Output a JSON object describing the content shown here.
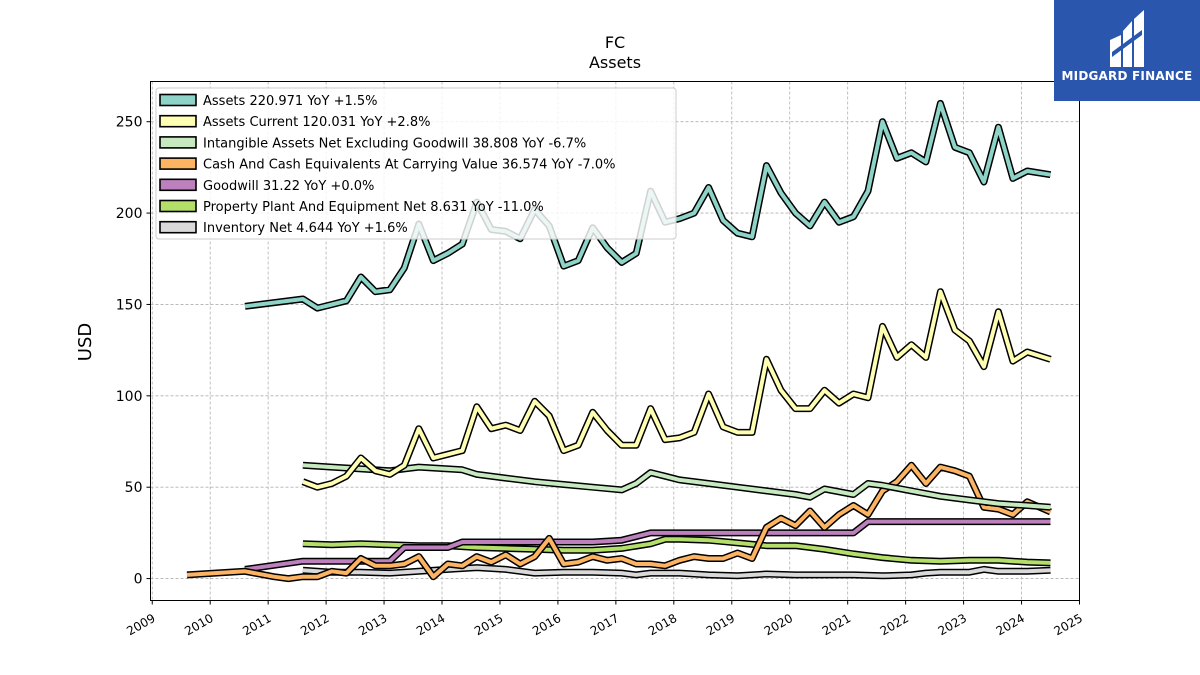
{
  "brand": {
    "name": "MIDGARD FINANCE",
    "color": "#2a57ad"
  },
  "chart_data": {
    "type": "line",
    "title": "FC",
    "subtitle": "Assets",
    "ylabel": "USD",
    "xlabel": "",
    "xlim": [
      2008.97,
      2025.0
    ],
    "ylim": [
      -12,
      272
    ],
    "x_ticks": [
      2009,
      2010,
      2011,
      2012,
      2013,
      2014,
      2015,
      2016,
      2017,
      2018,
      2019,
      2020,
      2021,
      2022,
      2023,
      2024,
      2025
    ],
    "y_ticks": [
      0,
      50,
      100,
      150,
      200,
      250
    ],
    "grid": true,
    "legend_position": "top-left",
    "series": [
      {
        "name": "Assets",
        "legend": "Assets  220.971 YoY +1.5%",
        "color": "#8dd3c7",
        "points": [
          [
            2010.6,
            149
          ],
          [
            2011.6,
            153
          ],
          [
            2011.85,
            148
          ],
          [
            2012.1,
            150
          ],
          [
            2012.35,
            152
          ],
          [
            2012.6,
            165
          ],
          [
            2012.85,
            157
          ],
          [
            2013.1,
            158
          ],
          [
            2013.35,
            170
          ],
          [
            2013.6,
            194
          ],
          [
            2013.85,
            174
          ],
          [
            2014.1,
            178
          ],
          [
            2014.35,
            183
          ],
          [
            2014.6,
            206
          ],
          [
            2014.85,
            191
          ],
          [
            2015.1,
            190
          ],
          [
            2015.35,
            186
          ],
          [
            2015.6,
            202
          ],
          [
            2015.85,
            193
          ],
          [
            2016.1,
            171
          ],
          [
            2016.35,
            174
          ],
          [
            2016.6,
            192
          ],
          [
            2016.85,
            181
          ],
          [
            2017.1,
            173
          ],
          [
            2017.35,
            178
          ],
          [
            2017.6,
            212
          ],
          [
            2017.85,
            195
          ],
          [
            2018.1,
            197
          ],
          [
            2018.35,
            200
          ],
          [
            2018.6,
            214
          ],
          [
            2018.85,
            196
          ],
          [
            2019.1,
            189
          ],
          [
            2019.35,
            187
          ],
          [
            2019.6,
            226
          ],
          [
            2019.85,
            211
          ],
          [
            2020.1,
            200
          ],
          [
            2020.35,
            193
          ],
          [
            2020.6,
            206
          ],
          [
            2020.85,
            195
          ],
          [
            2021.1,
            198
          ],
          [
            2021.35,
            212
          ],
          [
            2021.6,
            250
          ],
          [
            2021.85,
            230
          ],
          [
            2022.1,
            233
          ],
          [
            2022.35,
            228
          ],
          [
            2022.6,
            260
          ],
          [
            2022.85,
            236
          ],
          [
            2023.1,
            233
          ],
          [
            2023.35,
            217
          ],
          [
            2023.6,
            247
          ],
          [
            2023.85,
            219
          ],
          [
            2024.1,
            223
          ],
          [
            2024.5,
            221
          ]
        ]
      },
      {
        "name": "Assets Current",
        "legend": "Assets Current  120.031 YoY +2.8%",
        "color": "#ffffb3",
        "points": [
          [
            2011.6,
            53
          ],
          [
            2011.85,
            50
          ],
          [
            2012.1,
            52
          ],
          [
            2012.35,
            56
          ],
          [
            2012.6,
            66
          ],
          [
            2012.85,
            59
          ],
          [
            2013.1,
            57
          ],
          [
            2013.35,
            62
          ],
          [
            2013.6,
            82
          ],
          [
            2013.85,
            66
          ],
          [
            2014.1,
            68
          ],
          [
            2014.35,
            70
          ],
          [
            2014.6,
            94
          ],
          [
            2014.85,
            82
          ],
          [
            2015.1,
            84
          ],
          [
            2015.35,
            81
          ],
          [
            2015.6,
            97
          ],
          [
            2015.85,
            89
          ],
          [
            2016.1,
            70
          ],
          [
            2016.35,
            73
          ],
          [
            2016.6,
            91
          ],
          [
            2016.85,
            81
          ],
          [
            2017.1,
            73
          ],
          [
            2017.35,
            73
          ],
          [
            2017.6,
            93
          ],
          [
            2017.85,
            76
          ],
          [
            2018.1,
            77
          ],
          [
            2018.35,
            80
          ],
          [
            2018.6,
            101
          ],
          [
            2018.85,
            83
          ],
          [
            2019.1,
            80
          ],
          [
            2019.35,
            80
          ],
          [
            2019.6,
            120
          ],
          [
            2019.85,
            103
          ],
          [
            2020.1,
            93
          ],
          [
            2020.35,
            93
          ],
          [
            2020.6,
            103
          ],
          [
            2020.85,
            96
          ],
          [
            2021.1,
            101
          ],
          [
            2021.35,
            99
          ],
          [
            2021.6,
            138
          ],
          [
            2021.85,
            121
          ],
          [
            2022.1,
            128
          ],
          [
            2022.35,
            121
          ],
          [
            2022.6,
            157
          ],
          [
            2022.85,
            136
          ],
          [
            2023.1,
            130
          ],
          [
            2023.35,
            116
          ],
          [
            2023.6,
            146
          ],
          [
            2023.85,
            119
          ],
          [
            2024.1,
            124
          ],
          [
            2024.5,
            120
          ]
        ]
      },
      {
        "name": "Intangible Assets Net Excluding Goodwill",
        "legend": "Intangible Assets Net Excluding Goodwill  38.808 YoY -6.7%",
        "color": "#c7e9c0",
        "points": [
          [
            2011.6,
            62
          ],
          [
            2012.1,
            61
          ],
          [
            2012.6,
            60
          ],
          [
            2013.1,
            59
          ],
          [
            2013.35,
            60
          ],
          [
            2013.6,
            61
          ],
          [
            2014.1,
            60
          ],
          [
            2014.35,
            59.5
          ],
          [
            2014.6,
            57
          ],
          [
            2015.1,
            55
          ],
          [
            2015.6,
            53
          ],
          [
            2016.1,
            51.5
          ],
          [
            2016.6,
            50
          ],
          [
            2017.1,
            48.5
          ],
          [
            2017.35,
            52
          ],
          [
            2017.6,
            58
          ],
          [
            2017.85,
            56
          ],
          [
            2018.1,
            54
          ],
          [
            2018.6,
            52
          ],
          [
            2019.1,
            50
          ],
          [
            2019.6,
            48
          ],
          [
            2020.1,
            46
          ],
          [
            2020.35,
            44.5
          ],
          [
            2020.6,
            49
          ],
          [
            2021.1,
            46
          ],
          [
            2021.35,
            52
          ],
          [
            2021.6,
            51
          ],
          [
            2022.1,
            48
          ],
          [
            2022.6,
            45
          ],
          [
            2023.1,
            43
          ],
          [
            2023.6,
            41
          ],
          [
            2024.1,
            40
          ],
          [
            2024.5,
            39
          ]
        ]
      },
      {
        "name": "Cash And Cash Equivalents At Carrying Value",
        "legend": "Cash And Cash Equivalents At Carrying Value  36.574 YoY -7.0%",
        "color": "#fdb462",
        "points": [
          [
            2009.6,
            2
          ],
          [
            2010.6,
            4
          ],
          [
            2011.1,
            1
          ],
          [
            2011.35,
            0
          ],
          [
            2011.6,
            1
          ],
          [
            2011.85,
            1
          ],
          [
            2012.1,
            4
          ],
          [
            2012.35,
            3
          ],
          [
            2012.6,
            11
          ],
          [
            2012.85,
            7
          ],
          [
            2013.1,
            7
          ],
          [
            2013.35,
            8
          ],
          [
            2013.6,
            12
          ],
          [
            2013.85,
            1
          ],
          [
            2014.1,
            8
          ],
          [
            2014.35,
            7
          ],
          [
            2014.6,
            12
          ],
          [
            2014.85,
            9
          ],
          [
            2015.1,
            13
          ],
          [
            2015.35,
            8
          ],
          [
            2015.6,
            12
          ],
          [
            2015.85,
            22
          ],
          [
            2016.1,
            8
          ],
          [
            2016.35,
            9
          ],
          [
            2016.6,
            12
          ],
          [
            2016.85,
            10
          ],
          [
            2017.1,
            11
          ],
          [
            2017.35,
            8
          ],
          [
            2017.6,
            8
          ],
          [
            2017.85,
            7
          ],
          [
            2018.1,
            10
          ],
          [
            2018.35,
            12
          ],
          [
            2018.6,
            11
          ],
          [
            2018.85,
            11
          ],
          [
            2019.1,
            14
          ],
          [
            2019.35,
            11
          ],
          [
            2019.6,
            28
          ],
          [
            2019.85,
            33
          ],
          [
            2020.1,
            29
          ],
          [
            2020.35,
            37
          ],
          [
            2020.6,
            28
          ],
          [
            2020.85,
            35
          ],
          [
            2021.1,
            40
          ],
          [
            2021.35,
            35
          ],
          [
            2021.6,
            48
          ],
          [
            2021.85,
            53
          ],
          [
            2022.1,
            62
          ],
          [
            2022.35,
            52
          ],
          [
            2022.6,
            61
          ],
          [
            2022.85,
            59
          ],
          [
            2023.1,
            56
          ],
          [
            2023.35,
            39
          ],
          [
            2023.6,
            38
          ],
          [
            2023.85,
            35
          ],
          [
            2024.1,
            42
          ],
          [
            2024.5,
            36.5
          ]
        ]
      },
      {
        "name": "Goodwill",
        "legend": "Goodwill  31.22 YoY +0.0%",
        "color": "#bc80bd",
        "points": [
          [
            2010.6,
            5
          ],
          [
            2011.6,
            9.5
          ],
          [
            2012.6,
            9.5
          ],
          [
            2013.1,
            9.5
          ],
          [
            2013.35,
            17
          ],
          [
            2014.1,
            17
          ],
          [
            2014.35,
            20
          ],
          [
            2015.6,
            20
          ],
          [
            2016.6,
            20
          ],
          [
            2017.1,
            21
          ],
          [
            2017.6,
            25
          ],
          [
            2018.6,
            25
          ],
          [
            2019.6,
            25
          ],
          [
            2020.6,
            25
          ],
          [
            2021.1,
            25
          ],
          [
            2021.35,
            31.2
          ],
          [
            2022.6,
            31.2
          ],
          [
            2024.5,
            31.2
          ]
        ]
      },
      {
        "name": "Property Plant And Equipment Net",
        "legend": "Property Plant And Equipment Net  8.631 YoY -11.0%",
        "color": "#b3de69",
        "points": [
          [
            2011.6,
            19
          ],
          [
            2012.1,
            18.5
          ],
          [
            2012.6,
            19
          ],
          [
            2013.1,
            18.5
          ],
          [
            2013.6,
            18
          ],
          [
            2014.1,
            18
          ],
          [
            2014.6,
            17
          ],
          [
            2015.1,
            16.5
          ],
          [
            2015.6,
            16
          ],
          [
            2016.1,
            15.5
          ],
          [
            2016.6,
            15.5
          ],
          [
            2017.1,
            16.5
          ],
          [
            2017.6,
            19
          ],
          [
            2017.85,
            21.5
          ],
          [
            2018.1,
            21.5
          ],
          [
            2018.6,
            21
          ],
          [
            2019.1,
            19.5
          ],
          [
            2019.6,
            18
          ],
          [
            2020.1,
            18
          ],
          [
            2020.6,
            16
          ],
          [
            2021.1,
            13.5
          ],
          [
            2021.6,
            11.5
          ],
          [
            2022.1,
            10
          ],
          [
            2022.6,
            9.5
          ],
          [
            2023.1,
            10
          ],
          [
            2023.6,
            10
          ],
          [
            2024.1,
            9
          ],
          [
            2024.5,
            8.6
          ]
        ]
      },
      {
        "name": "Inventory Net",
        "legend": "Inventory Net  4.644 YoY +1.6%",
        "color": "#d9d9d9",
        "points": [
          [
            2011.6,
            4.5
          ],
          [
            2012.1,
            3.5
          ],
          [
            2012.6,
            3.5
          ],
          [
            2013.1,
            3
          ],
          [
            2013.6,
            4
          ],
          [
            2014.1,
            5
          ],
          [
            2014.6,
            6
          ],
          [
            2015.1,
            5
          ],
          [
            2015.6,
            3
          ],
          [
            2016.1,
            3.5
          ],
          [
            2016.6,
            3.5
          ],
          [
            2017.1,
            3
          ],
          [
            2017.35,
            2
          ],
          [
            2017.6,
            3
          ],
          [
            2018.1,
            3
          ],
          [
            2018.6,
            2
          ],
          [
            2019.1,
            1.5
          ],
          [
            2019.6,
            2.5
          ],
          [
            2020.1,
            2
          ],
          [
            2020.6,
            2
          ],
          [
            2021.1,
            2
          ],
          [
            2021.6,
            1.5
          ],
          [
            2022.1,
            2
          ],
          [
            2022.35,
            3
          ],
          [
            2022.6,
            3.5
          ],
          [
            2023.1,
            3.5
          ],
          [
            2023.35,
            5
          ],
          [
            2023.6,
            4
          ],
          [
            2024.1,
            4
          ],
          [
            2024.5,
            4.6
          ]
        ]
      }
    ]
  }
}
